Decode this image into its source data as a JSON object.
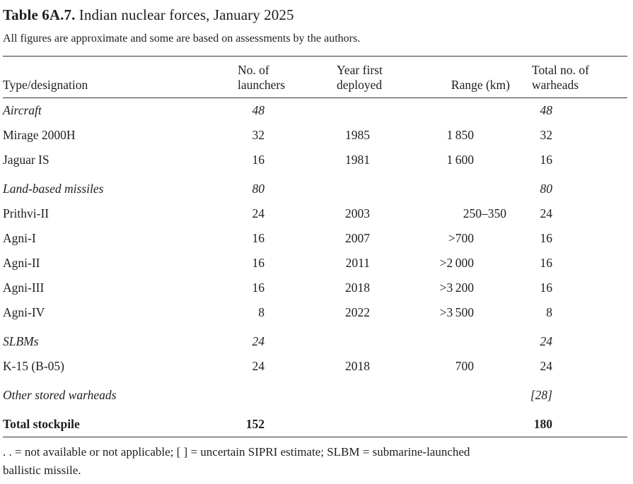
{
  "title": {
    "label": "Table 6A.7.",
    "text": " Indian nuclear forces, January 2025"
  },
  "subtitle": "All figures are approximate and some are based on assessments by the authors.",
  "table": {
    "headers": {
      "type": "Type/designation",
      "launchers": {
        "line1": "No. of",
        "line2": "launchers"
      },
      "year": {
        "line1": "Year first",
        "line2": "deployed"
      },
      "range": "Range (km)",
      "warheads": {
        "line1": "Total no. of",
        "line2": "warheads"
      }
    },
    "rows": [
      {
        "name": "Aircraft",
        "launchers": "48",
        "year": "",
        "range": "",
        "warheads": "48"
      },
      {
        "name": "Mirage 2000H",
        "launchers": "32",
        "year": "1985",
        "range": "1 850",
        "warheads": "32"
      },
      {
        "name": "Jaguar IS",
        "launchers": "16",
        "year": "1981",
        "range": "1 600",
        "warheads": "16"
      },
      {
        "name": "Land-based missiles",
        "launchers": "80",
        "year": "",
        "range": "",
        "warheads": "80"
      },
      {
        "name": "Prithvi-II",
        "launchers": "24",
        "year": "2003",
        "range": "250–350",
        "warheads": "24"
      },
      {
        "name": "Agni-I",
        "launchers": "16",
        "year": "2007",
        "range": ">700",
        "warheads": "16"
      },
      {
        "name": "Agni-II",
        "launchers": "16",
        "year": "2011",
        "range": ">2 000",
        "warheads": "16"
      },
      {
        "name": "Agni-III",
        "launchers": "16",
        "year": "2018",
        "range": ">3 200",
        "warheads": "16"
      },
      {
        "name": "Agni-IV",
        "launchers": "8",
        "year": "2022",
        "range": ">3 500",
        "warheads": "8"
      },
      {
        "name": "SLBMs",
        "launchers": "24",
        "year": "",
        "range": "",
        "warheads": "24"
      },
      {
        "name": "K-15 (B-05)",
        "launchers": "24",
        "year": "2018",
        "range": "700",
        "warheads": "24"
      },
      {
        "name": "Other stored warheads",
        "launchers": "",
        "year": "",
        "range": "",
        "warheads": "[28]"
      },
      {
        "name": "Total stockpile",
        "launchers": "152",
        "year": "",
        "range": "",
        "warheads": "180"
      }
    ]
  },
  "footnote": {
    "line1": ". . = not available or not applicable; [ ] = uncertain SIPRI estimate; SLBM = submarine-launched",
    "line2": "ballistic missile."
  }
}
